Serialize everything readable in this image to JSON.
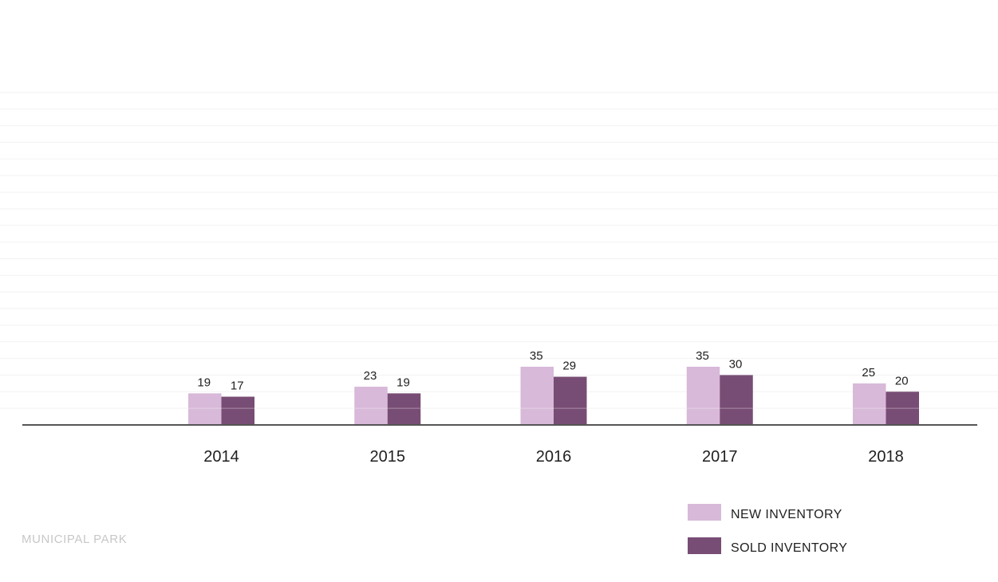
{
  "chart_data": {
    "type": "bar",
    "categories": [
      "2014",
      "2015",
      "2016",
      "2017",
      "2018"
    ],
    "series": [
      {
        "name": "NEW INVENTORY",
        "values": [
          19,
          23,
          35,
          35,
          25
        ],
        "color": "#d8b9d9"
      },
      {
        "name": "SOLD INVENTORY",
        "values": [
          17,
          19,
          29,
          30,
          20
        ],
        "color": "#784d75"
      }
    ],
    "title": "",
    "xlabel": "",
    "ylabel": "",
    "ylim": [
      0,
      200
    ],
    "grid": true,
    "legend_position": "bottom-right"
  },
  "footer": {
    "label": "MUNICIPAL PARK"
  },
  "colors": {
    "axis": "#555555",
    "grid": "#f2f2f2",
    "footer_text": "#c7c7c7"
  }
}
